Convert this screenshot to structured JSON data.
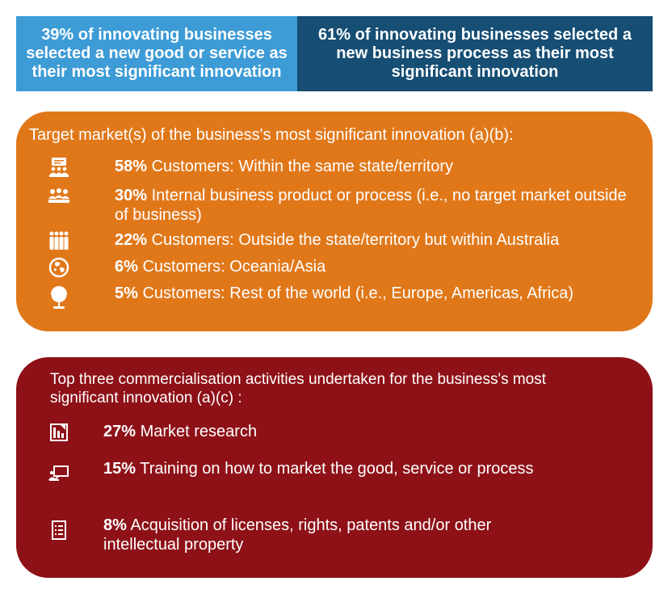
{
  "banner": {
    "left_text": "39% of innovating businesses selected a new good or service as their most significant innovation",
    "right_text": "61% of innovating businesses selected a new business process as their most significant innovation",
    "left_color": "#3d9bd6",
    "right_color": "#164e74"
  },
  "target_market": {
    "heading": "Target market(s) of the business's most significant innovation (a)(b):",
    "color": "#e0781a",
    "items": [
      {
        "percent": "58%",
        "label": "Customers: Within the same state/territory",
        "icon": "presenter-audience-icon"
      },
      {
        "percent": "30%",
        "label": "Internal business product or process (i.e., no target market outside of business)",
        "icon": "group-meeting-icon"
      },
      {
        "percent": "22%",
        "label": "Customers: Outside the state/territory but within Australia",
        "icon": "crowd-icon"
      },
      {
        "percent": "6%",
        "label": "Customers: Oceania/Asia",
        "icon": "globe-asia-icon"
      },
      {
        "percent": "5%",
        "label": "Customers: Rest of the world (i.e., Europe, Americas, Africa)",
        "icon": "desk-globe-icon"
      }
    ]
  },
  "commercialisation": {
    "heading": "Top three commercialisation activities undertaken for the business's most significant innovation (a)(c) :",
    "color": "#8e1118",
    "items": [
      {
        "percent": "27%",
        "label": "Market research",
        "icon": "bar-chart-report-icon"
      },
      {
        "percent": "15%",
        "label": " Training on how to market the good, service or process",
        "icon": "training-board-icon"
      },
      {
        "percent": "8%",
        "label": " Acquisition of licenses, rights, patents and/or other intellectual property",
        "icon": "document-list-icon"
      }
    ]
  }
}
